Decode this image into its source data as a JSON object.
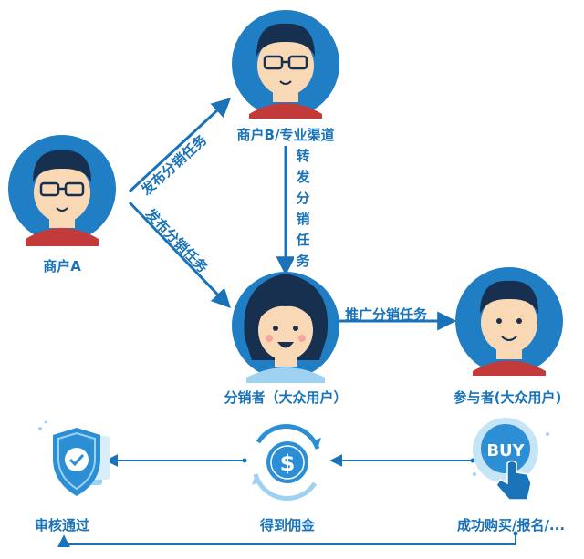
{
  "nodes": {
    "merchant_a": "商户A",
    "merchant_b": "商户B/专业渠道",
    "distributor": "分销者（大众用户）",
    "participant": "参与者(大众用户)"
  },
  "edges": {
    "publish_to_b": "发布分销任务",
    "publish_to_distributor": "发布分销任务",
    "forward_task": "转发分销任务",
    "promote_task": "推广分销任务"
  },
  "bottom_flow": {
    "approved": "审核通过",
    "commission": "得到佣金",
    "purchase": "成功购买/报名/...",
    "buy_badge": "BUY"
  },
  "colors": {
    "primary": "#1a73b8",
    "circle": "#1f7ec4",
    "light": "#9fd2f0",
    "skin": "#f9d9b5"
  }
}
